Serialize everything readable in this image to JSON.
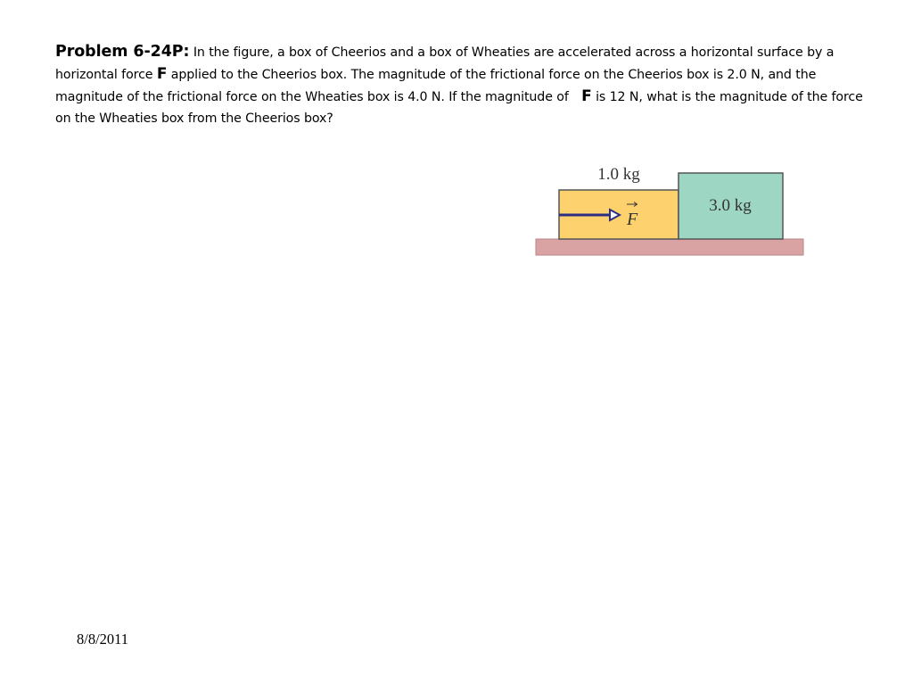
{
  "problem": {
    "title": "Problem 6-24P:",
    "text_1": " In the figure, a box of Cheerios and a box of Wheaties are accelerated across a horizontal surface by a horizontal force ",
    "force_symbol_1": "F",
    "text_2": " applied to the Cheerios box. The magnitude of the frictional force on the Cheerios box is 2.0 N, and the magnitude of the frictional force on the Wheaties box is 4.0 N. If the magnitude of ",
    "force_symbol_2": "F",
    "text_3": " is 12 N, what is the magnitude of the force on the Wheaties box from the Cheerios box?"
  },
  "figure": {
    "cheerios_mass_label": "1.0 kg",
    "wheaties_mass_label": "3.0 kg",
    "force_label": "F",
    "colors": {
      "cheerios_box": "#fdd26e",
      "wheaties_box": "#9dd7c4",
      "surface": "#d9a3a3",
      "arrow": "#2c2f83",
      "outline": "#555555"
    }
  },
  "footer": {
    "date": "8/8/2011"
  }
}
